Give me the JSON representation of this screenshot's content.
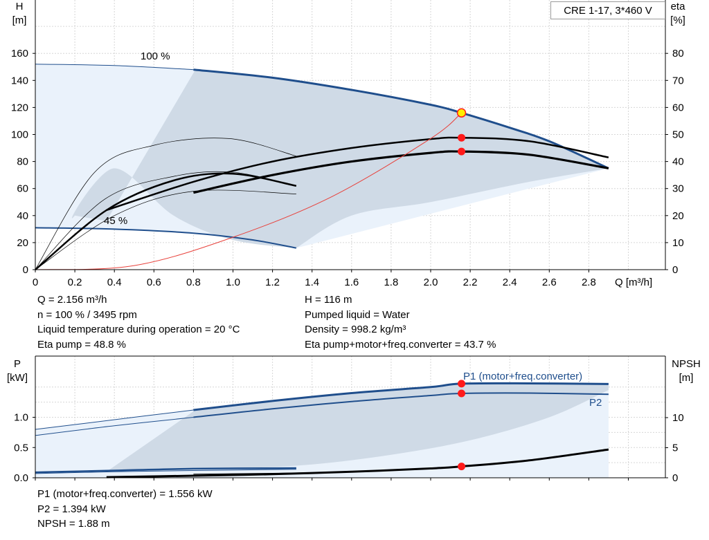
{
  "title": "CRE 1-17, 3*460 V",
  "top_chart": {
    "y_left_label": [
      "H",
      "[m]"
    ],
    "y_right_label": [
      "eta",
      "[%]"
    ],
    "x_label": "Q [m³/h]",
    "x_ticks": [
      "0",
      "0.2",
      "0.4",
      "0.6",
      "0.8",
      "1.0",
      "1.2",
      "1.4",
      "1.6",
      "1.8",
      "2.0",
      "2.2",
      "2.4",
      "2.6",
      "2.8"
    ],
    "y_left_ticks": [
      "0",
      "20",
      "40",
      "60",
      "80",
      "100",
      "120",
      "140",
      "160"
    ],
    "y_right_ticks": [
      "0",
      "10",
      "20",
      "30",
      "40",
      "50",
      "60",
      "70",
      "80"
    ],
    "label_100": "100 %",
    "label_45": "45 %"
  },
  "bottom_chart": {
    "y_left_label": [
      "P",
      "[kW]"
    ],
    "y_right_label": [
      "NPSH",
      "[m]"
    ],
    "y_left_ticks": [
      "0.0",
      "0.5",
      "1.0"
    ],
    "y_right_ticks": [
      "0",
      "5",
      "10"
    ],
    "label_p1": "P1 (motor+freq.converter)",
    "label_p2": "P2"
  },
  "info_left": [
    "Q = 2.156 m³/h",
    "n = 100 % / 3495 rpm",
    "Liquid temperature during operation = 20 °C",
    "Eta pump = 48.8 %"
  ],
  "info_right": [
    "H = 116 m",
    "Pumped liquid = Water",
    "Density = 998.2 kg/m³",
    "Eta pump+motor+freq.converter = 43.7 %"
  ],
  "info_bottom": [
    "P1 (motor+freq.converter) = 1.556 kW",
    "P2 = 1.394 kW",
    "NPSH = 1.88 m"
  ],
  "colors": {
    "curve_blue": "#1f4e8c",
    "area_light": "#eaf2fb",
    "area_dark": "#cfdae6",
    "system_curve": "#e8403a",
    "duty_point": "#ff1a1a",
    "duty_point_fill": "#ffee00"
  },
  "chart_data": [
    {
      "type": "line",
      "name": "pump-performance",
      "title": "CRE 1-17, 3*460 V",
      "xlabel": "Q [m³/h]",
      "ylabel": "H [m]",
      "y2label": "eta [%]",
      "xlim": [
        0,
        3.0
      ],
      "ylim": [
        0,
        180
      ],
      "y2lim": [
        0,
        90
      ],
      "grid": true,
      "series": [
        {
          "name": "100 %",
          "axis": "H",
          "x": [
            0,
            0.4,
            0.8,
            1.2,
            1.6,
            2.0,
            2.156,
            2.4,
            2.6,
            2.9
          ],
          "y": [
            152,
            151,
            148,
            142,
            133,
            122,
            116,
            105,
            95,
            75
          ]
        },
        {
          "name": "45 %",
          "axis": "H",
          "x": [
            0,
            0.4,
            0.8,
            1.1,
            1.32
          ],
          "y": [
            31,
            30,
            27,
            22,
            16
          ]
        },
        {
          "axis": "H",
          "x": [
            0,
            0.3,
            0.6,
            0.98,
            1.32
          ],
          "y": [
            0,
            72,
            92,
            97,
            84
          ]
        },
        {
          "axis": "H",
          "x": [
            0,
            0.35,
            0.7,
            1.0,
            1.32
          ],
          "y": [
            0,
            52,
            69,
            72,
            62
          ]
        },
        {
          "axis": "eta",
          "x": [
            0.36,
            0.8,
            1.2,
            1.6,
            2.0,
            2.16,
            2.5,
            2.9
          ],
          "y": [
            22,
            32.5,
            40,
            45,
            48.3,
            48.8,
            47.5,
            41.5
          ]
        },
        {
          "axis": "eta",
          "x": [
            0.8,
            1.2,
            1.6,
            2.0,
            2.16,
            2.5,
            2.9
          ],
          "y": [
            28.5,
            35,
            40,
            43.2,
            43.7,
            42.5,
            37.5
          ]
        },
        {
          "axis": "H",
          "x": [
            0,
            0.5,
            1.0,
            1.5,
            2.0,
            2.156
          ],
          "y": [
            0,
            3,
            24,
            54,
            97,
            116
          ]
        }
      ],
      "duty_point": {
        "Q": 2.156,
        "H": 116,
        "eta_pump": 48.8,
        "eta_total": 43.7
      }
    },
    {
      "type": "line",
      "name": "power-npsh",
      "ylabel": "P [kW]",
      "y2label": "NPSH [m]",
      "xlim": [
        0,
        3.0
      ],
      "ylim": [
        0,
        1.6
      ],
      "y2lim": [
        0,
        16
      ],
      "grid": true,
      "series": [
        {
          "name": "P1 (motor+freq.converter)",
          "axis": "P",
          "x": [
            0,
            0.4,
            0.8,
            1.2,
            1.6,
            2.0,
            2.156,
            2.5,
            2.9
          ],
          "y": [
            0.8,
            0.96,
            1.12,
            1.27,
            1.4,
            1.5,
            1.556,
            1.56,
            1.55
          ]
        },
        {
          "name": "P2",
          "axis": "P",
          "x": [
            0,
            0.4,
            0.8,
            1.2,
            1.6,
            2.0,
            2.156,
            2.5,
            2.9
          ],
          "y": [
            0.7,
            0.86,
            1.0,
            1.14,
            1.26,
            1.36,
            1.394,
            1.4,
            1.38
          ]
        },
        {
          "axis": "P",
          "x": [
            0,
            0.4,
            0.8,
            1.32
          ],
          "y": [
            0.09,
            0.12,
            0.15,
            0.16
          ]
        },
        {
          "axis": "NPSH",
          "x": [
            0.36,
            0.8,
            1.2,
            1.6,
            2.0,
            2.156,
            2.5,
            2.9
          ],
          "y": [
            0.1,
            0.35,
            0.6,
            1.0,
            1.55,
            1.88,
            2.9,
            4.7
          ]
        }
      ],
      "duty_point": {
        "P1": 1.556,
        "P2": 1.394,
        "NPSH": 1.88
      }
    }
  ]
}
